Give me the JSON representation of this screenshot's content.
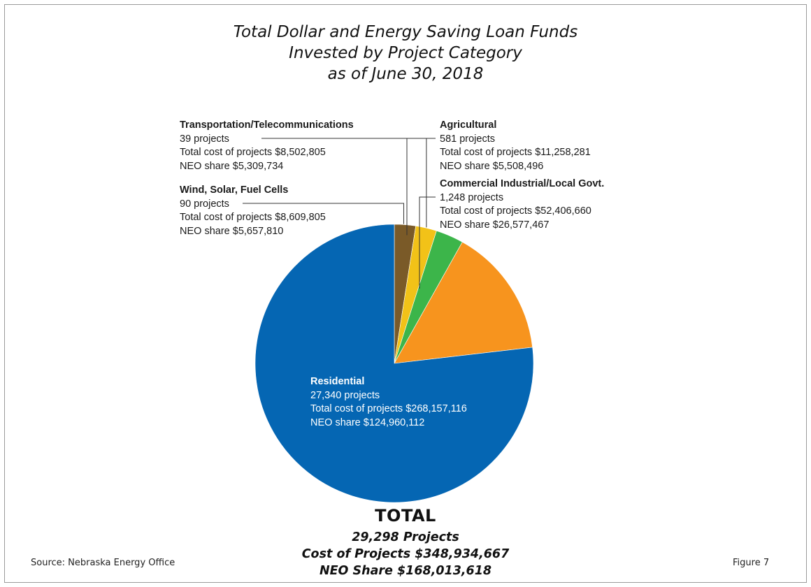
{
  "title_lines": [
    "Total Dollar and Energy Saving Loan Funds",
    "Invested by Project Category",
    "as of June 30, 2018"
  ],
  "chart_data": {
    "type": "pie",
    "slices": [
      {
        "name": "Residential",
        "projects": "27,340 projects",
        "total_cost": "Total cost of projects $268,157,116",
        "neo_share": "NEO share $124,960,112",
        "value": 268157116,
        "color": "#0566b3"
      },
      {
        "name": "Wind, Solar, Fuel Cells",
        "projects": "90 projects",
        "total_cost": "Total cost of projects $8,609,805",
        "neo_share": "NEO share $5,657,810",
        "value": 8609805,
        "color": "#7a5a28"
      },
      {
        "name": "Transportation/Telecommunications",
        "projects": "39 projects",
        "total_cost": "Total cost of projects $8,502,805",
        "neo_share": "NEO share $5,309,734",
        "value": 8502805,
        "color": "#f2c218"
      },
      {
        "name": "Agricultural",
        "projects": "581 projects",
        "total_cost": "Total cost of projects $11,258,281",
        "neo_share": "NEO share $5,508,496",
        "value": 11258281,
        "color": "#3cb54a"
      },
      {
        "name": "Commercial Industrial/Local Govt.",
        "projects": "1,248 projects",
        "total_cost": "Total cost of projects $52,406,660",
        "neo_share": "NEO share $26,577,467",
        "value": 52406660,
        "color": "#f7941e"
      }
    ]
  },
  "total": {
    "heading": "TOTAL",
    "projects": "29,298 Projects",
    "cost": "Cost of Projects $348,934,667",
    "neo_share": "NEO Share $168,013,618"
  },
  "source": "Source: Nebraska Energy Office",
  "figure_label": "Figure 7"
}
